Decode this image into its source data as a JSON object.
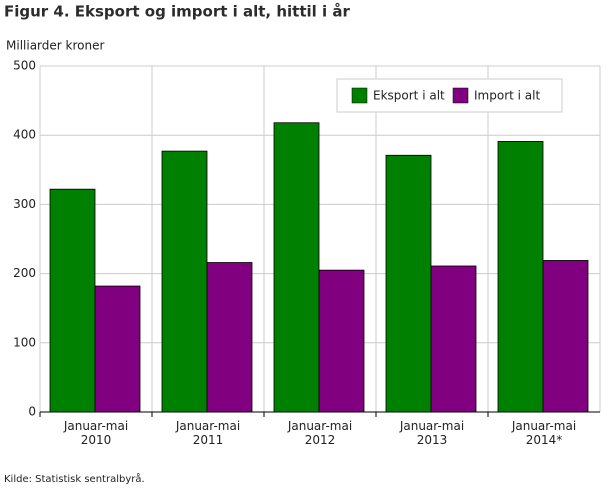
{
  "chart_data": {
    "type": "bar",
    "title": "Figur 4. Eksport og import i alt, hittil i år",
    "y_label": "Milliarder kroner",
    "source": "Kilde: Statistisk sentralbyrå.",
    "categories": [
      "Januar-mai 2010",
      "Januar-mai 2011",
      "Januar-mai 2012",
      "Januar-mai 2013",
      "Januar-mai 2014*"
    ],
    "series": [
      {
        "name": "Eksport i alt",
        "color": "#008000",
        "values": [
          322,
          377,
          418,
          371,
          391
        ]
      },
      {
        "name": "Import i alt",
        "color": "#800080",
        "values": [
          182,
          216,
          205,
          211,
          219
        ]
      }
    ],
    "ylim": [
      0,
      500
    ],
    "yticks": [
      0,
      100,
      200,
      300,
      400,
      500
    ],
    "grid": true,
    "legend": "top-right"
  }
}
